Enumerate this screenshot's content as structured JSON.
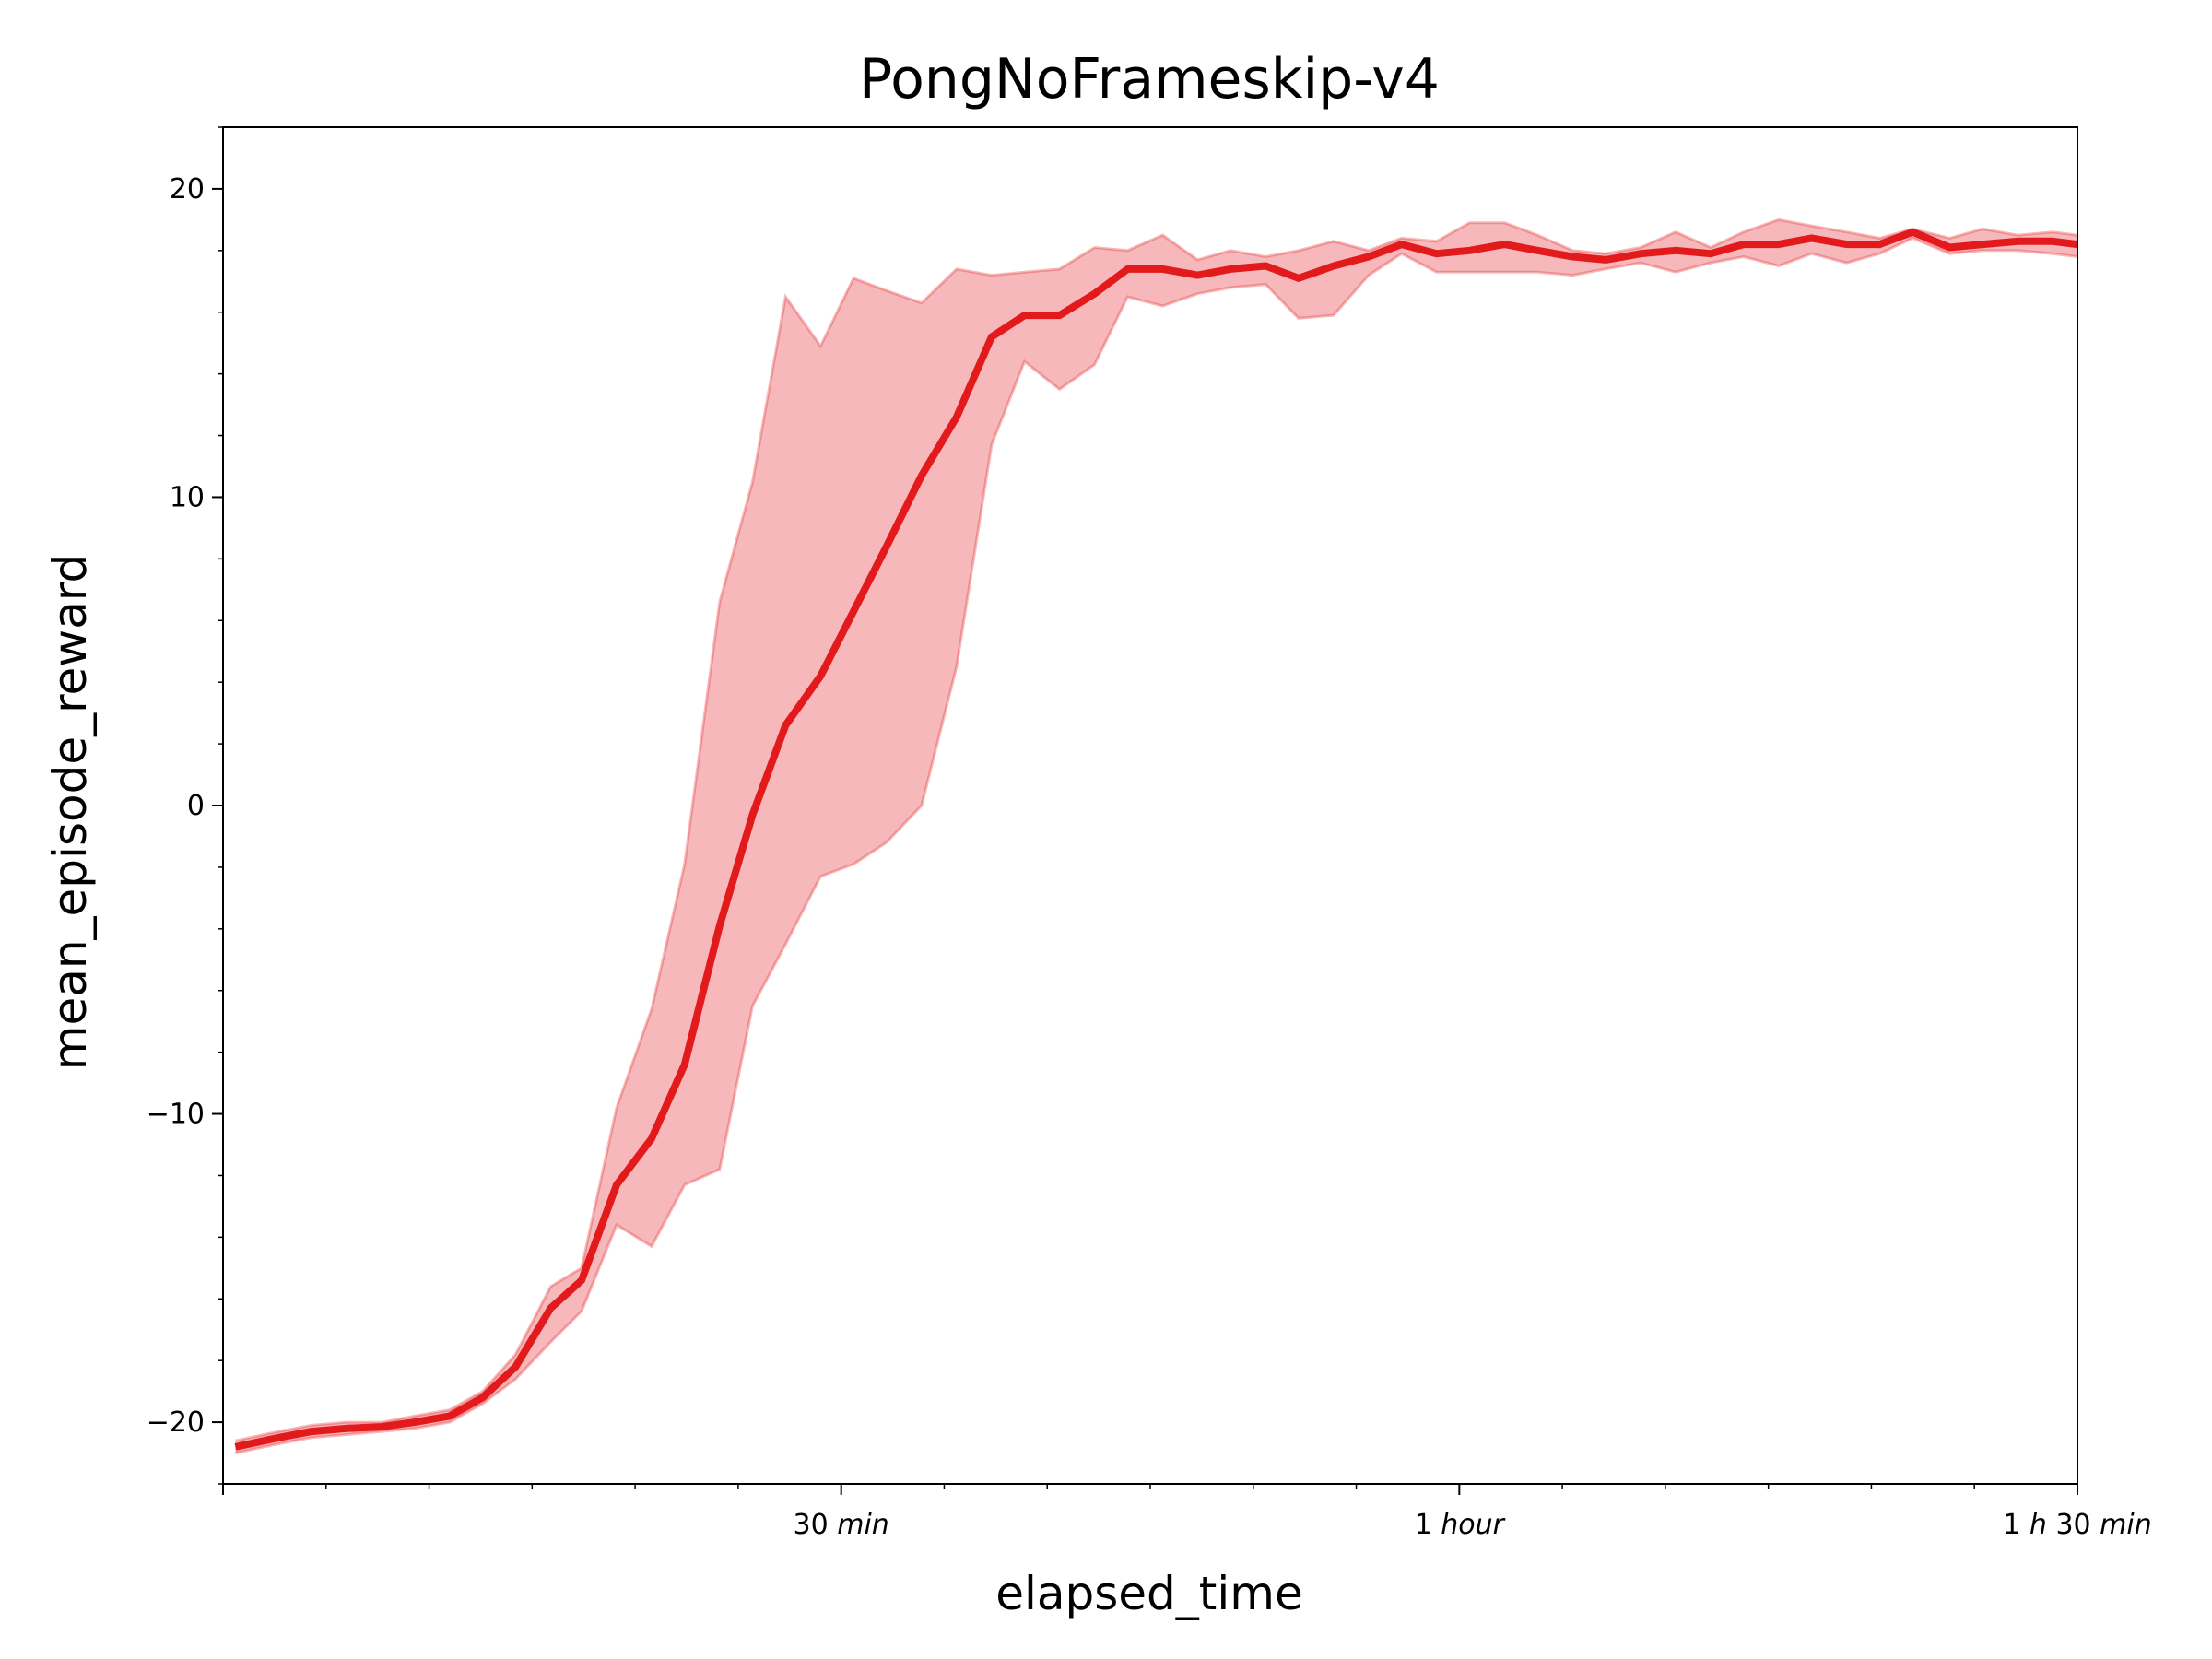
{
  "chart_data": {
    "type": "line",
    "title": "PongNoFrameskip-v4",
    "xlabel": "elapsed_time",
    "ylabel": "mean_episode_reward",
    "xlim": [
      0,
      90
    ],
    "ylim": [
      -22,
      22
    ],
    "grid": false,
    "legend": "none",
    "x_ticks": [
      {
        "value": 30,
        "num": "30",
        "unit": "min"
      },
      {
        "value": 60,
        "num": "1",
        "unit": "hour"
      },
      {
        "value": 90,
        "num": "1",
        "unit": "h",
        "num2": "30",
        "unit2": "min"
      }
    ],
    "y_ticks": [
      {
        "value": 20,
        "label": "20"
      },
      {
        "value": 10,
        "label": "10"
      },
      {
        "value": 0,
        "label": "0"
      },
      {
        "value": -10,
        "label": "−10"
      },
      {
        "value": -20,
        "label": "−20"
      }
    ],
    "series": [
      {
        "color": "#e31a1c",
        "band_color": "#f4a6aa",
        "x": [
          0.6,
          2.7,
          4.3,
          6.0,
          7.7,
          9.3,
          11.0,
          12.6,
          14.2,
          15.9,
          17.4,
          19.1,
          20.8,
          22.4,
          24.1,
          25.7,
          27.3,
          29.0,
          30.6,
          32.2,
          33.9,
          35.6,
          37.3,
          38.9,
          40.6,
          42.3,
          43.9,
          45.6,
          47.3,
          48.9,
          50.6,
          52.2,
          53.9,
          55.6,
          57.2,
          58.9,
          60.5,
          62.2,
          63.8,
          65.5,
          67.1,
          68.8,
          70.5,
          72.2,
          73.8,
          75.5,
          77.1,
          78.8,
          80.4,
          82.0,
          83.8,
          85.4,
          87.1,
          88.8,
          90.0
        ],
        "y": [
          -20.8,
          -20.5,
          -20.3,
          -20.2,
          -20.15,
          -20.0,
          -19.8,
          -19.2,
          -18.2,
          -16.3,
          -15.4,
          -12.3,
          -10.8,
          -8.4,
          -3.9,
          -0.3,
          2.6,
          4.2,
          6.3,
          8.4,
          10.7,
          12.6,
          15.2,
          15.9,
          15.9,
          16.6,
          17.4,
          17.4,
          17.2,
          17.4,
          17.5,
          17.1,
          17.5,
          17.8,
          18.2,
          17.9,
          18.0,
          18.2,
          18.0,
          17.8,
          17.7,
          17.9,
          18.0,
          17.9,
          18.2,
          18.2,
          18.4,
          18.2,
          18.2,
          18.6,
          18.1,
          18.2,
          18.3,
          18.3,
          18.2
        ],
        "upper": [
          -20.6,
          -20.3,
          -20.1,
          -20.0,
          -20.0,
          -19.8,
          -19.6,
          -19.0,
          -17.8,
          -15.6,
          -15.0,
          -9.8,
          -6.6,
          -1.9,
          6.6,
          10.5,
          16.5,
          14.9,
          17.1,
          16.7,
          16.3,
          17.4,
          17.2,
          17.3,
          17.4,
          18.1,
          18.0,
          18.5,
          17.7,
          18.0,
          17.8,
          18.0,
          18.3,
          18.0,
          18.4,
          18.3,
          18.9,
          18.9,
          18.5,
          18.0,
          17.9,
          18.1,
          18.6,
          18.1,
          18.6,
          19.0,
          18.8,
          18.6,
          18.4,
          18.7,
          18.4,
          18.7,
          18.5,
          18.6,
          18.5
        ],
        "lower": [
          -21.0,
          -20.7,
          -20.5,
          -20.4,
          -20.3,
          -20.2,
          -20.0,
          -19.4,
          -18.6,
          -17.4,
          -16.4,
          -13.6,
          -14.3,
          -12.3,
          -11.8,
          -6.5,
          -4.5,
          -2.3,
          -1.9,
          -1.2,
          0.0,
          4.5,
          11.7,
          14.4,
          13.5,
          14.3,
          16.5,
          16.2,
          16.6,
          16.8,
          16.9,
          15.8,
          15.9,
          17.2,
          17.9,
          17.3,
          17.3,
          17.3,
          17.3,
          17.2,
          17.4,
          17.6,
          17.3,
          17.6,
          17.8,
          17.5,
          17.9,
          17.6,
          17.9,
          18.4,
          17.9,
          18.0,
          18.0,
          17.9,
          17.8
        ]
      }
    ]
  }
}
